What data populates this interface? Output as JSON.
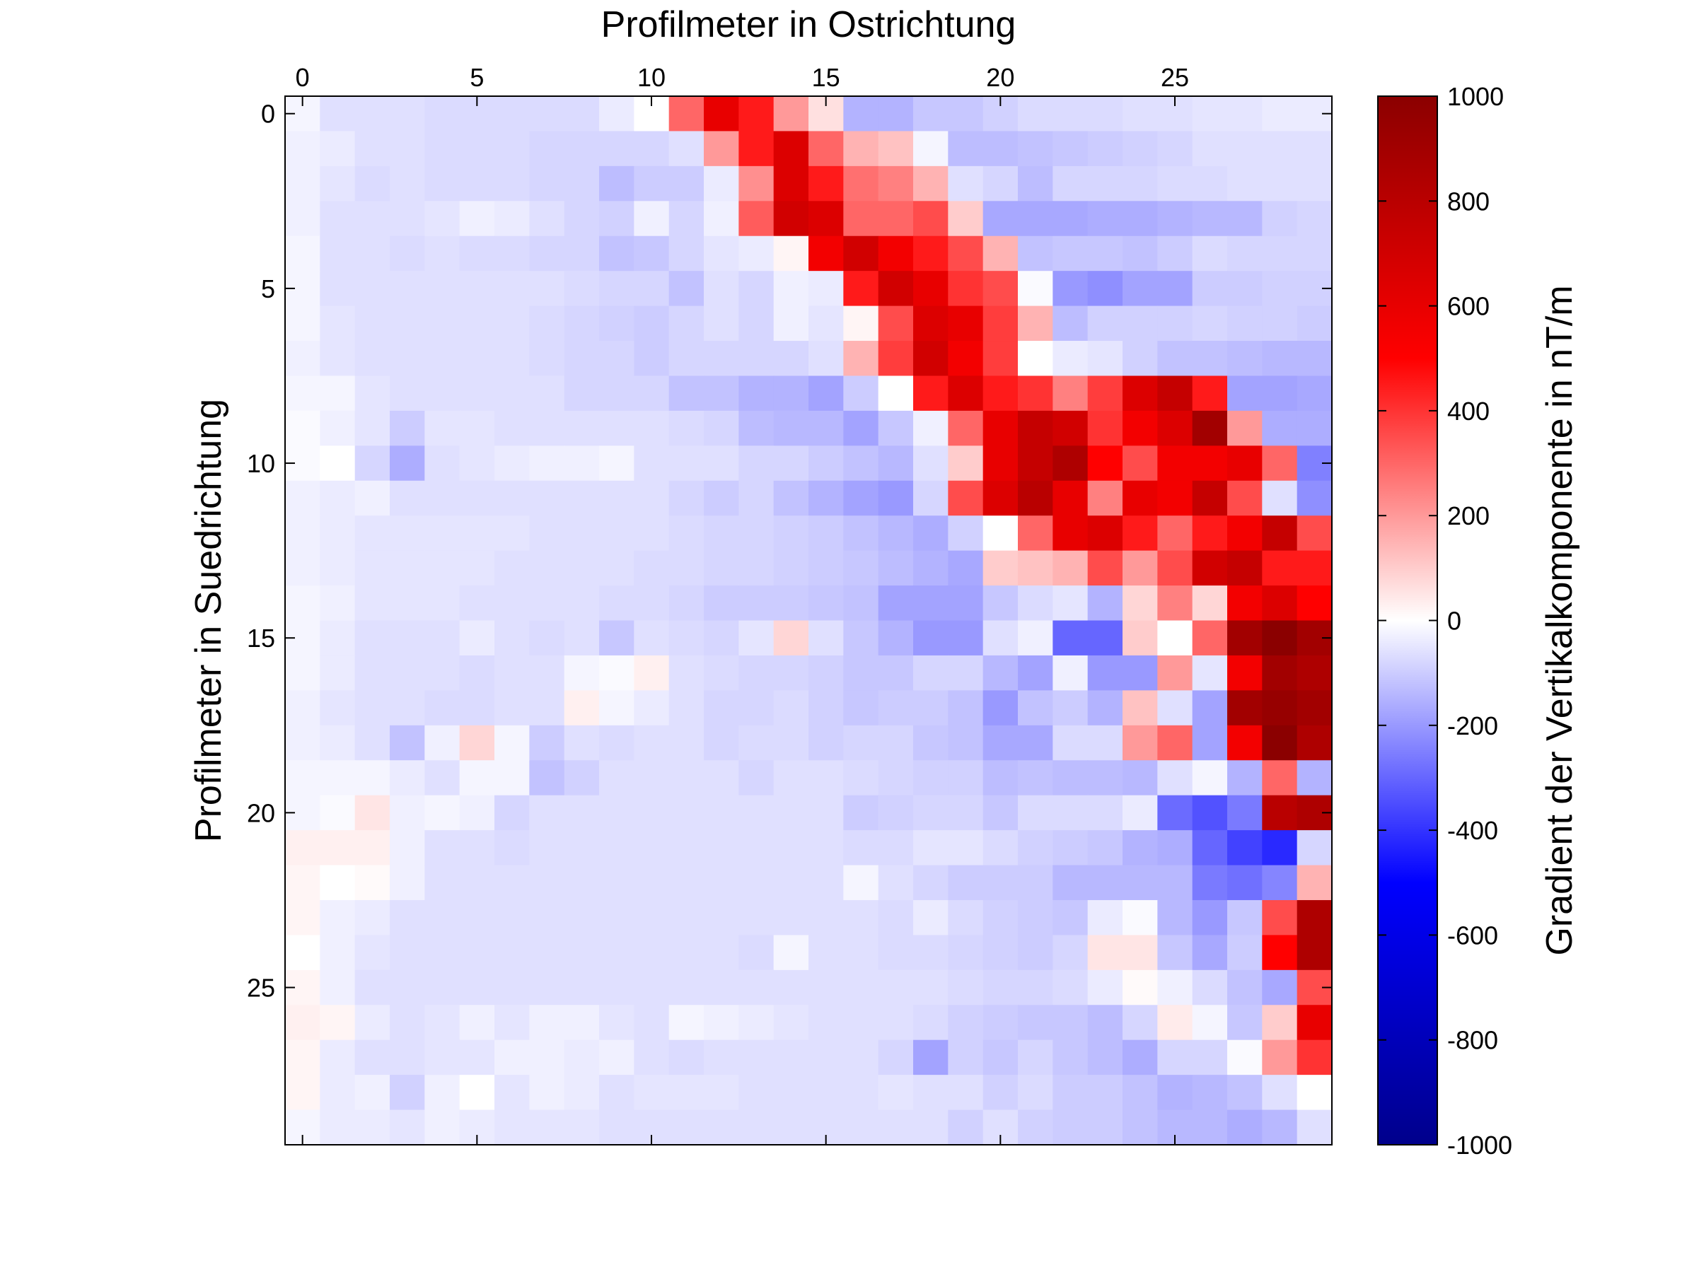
{
  "chart_data": {
    "type": "heatmap",
    "xlabel": "Profilmeter in Ostrichtung",
    "ylabel": "Profilmeter in Suedrichtung",
    "colorbar_label": "Gradient der Vertikalkomponente in nT/m",
    "xlim": [
      -0.5,
      29.5
    ],
    "ylim": [
      -0.5,
      29.5
    ],
    "x_axis_position": "top",
    "y_axis_direction": "down",
    "x_ticks": [
      0,
      5,
      10,
      15,
      20,
      25
    ],
    "y_ticks": [
      0,
      5,
      10,
      15,
      20,
      25
    ],
    "colorbar_ticks": [
      1000,
      800,
      600,
      400,
      200,
      0,
      -200,
      -400,
      -600,
      -800,
      -1000
    ],
    "clim": [
      -1000,
      1000
    ],
    "colormap": [
      "#00008b",
      "#0000ff",
      "#ffffff",
      "#ff0000",
      "#8b0000"
    ],
    "grid": false,
    "z": [
      [
        -20,
        -60,
        -60,
        -60,
        -70,
        -70,
        -70,
        -70,
        -70,
        -40,
        0,
        300,
        600,
        450,
        200,
        60,
        -150,
        -150,
        -110,
        -110,
        -90,
        -70,
        -70,
        -70,
        -60,
        -60,
        -50,
        -50,
        -40,
        -40
      ],
      [
        -30,
        -40,
        -60,
        -60,
        -70,
        -70,
        -70,
        -80,
        -80,
        -80,
        -80,
        -60,
        200,
        450,
        650,
        300,
        150,
        120,
        -20,
        -130,
        -130,
        -120,
        -110,
        -100,
        -90,
        -80,
        -60,
        -60,
        -60,
        -60
      ],
      [
        -30,
        -50,
        -70,
        -60,
        -70,
        -70,
        -70,
        -80,
        -80,
        -130,
        -100,
        -100,
        -40,
        220,
        650,
        450,
        280,
        250,
        150,
        -60,
        -80,
        -130,
        -80,
        -80,
        -80,
        -70,
        -70,
        -60,
        -60,
        -60
      ],
      [
        -30,
        -60,
        -60,
        -60,
        -50,
        -30,
        -40,
        -60,
        -80,
        -90,
        -30,
        -80,
        -30,
        320,
        700,
        650,
        300,
        300,
        350,
        100,
        -170,
        -170,
        -170,
        -160,
        -160,
        -150,
        -140,
        -140,
        -90,
        -80
      ],
      [
        -20,
        -60,
        -60,
        -70,
        -60,
        -70,
        -70,
        -80,
        -80,
        -120,
        -110,
        -80,
        -50,
        -40,
        20,
        550,
        700,
        550,
        450,
        350,
        150,
        -120,
        -110,
        -110,
        -120,
        -100,
        -70,
        -80,
        -80,
        -80
      ],
      [
        -20,
        -60,
        -60,
        -60,
        -60,
        -60,
        -60,
        -60,
        -70,
        -80,
        -80,
        -120,
        -60,
        -80,
        -30,
        -40,
        450,
        700,
        600,
        400,
        350,
        -10,
        -200,
        -220,
        -180,
        -180,
        -100,
        -100,
        -90,
        -90
      ],
      [
        -20,
        -50,
        -60,
        -60,
        -60,
        -60,
        -60,
        -70,
        -80,
        -90,
        -100,
        -80,
        -60,
        -80,
        -30,
        -50,
        20,
        350,
        650,
        600,
        380,
        150,
        -130,
        -90,
        -90,
        -90,
        -80,
        -90,
        -90,
        -100
      ],
      [
        -30,
        -50,
        -60,
        -60,
        -60,
        -60,
        -60,
        -70,
        -80,
        -80,
        -100,
        -80,
        -80,
        -80,
        -80,
        -60,
        150,
        380,
        700,
        550,
        380,
        0,
        -40,
        -50,
        -90,
        -120,
        -120,
        -130,
        -140,
        -140
      ],
      [
        -20,
        -20,
        -50,
        -60,
        -60,
        -60,
        -60,
        -60,
        -80,
        -80,
        -80,
        -120,
        -120,
        -150,
        -150,
        -180,
        -100,
        0,
        450,
        650,
        450,
        400,
        250,
        380,
        650,
        750,
        450,
        -180,
        -180,
        -170
      ],
      [
        -10,
        -30,
        -50,
        -100,
        -50,
        -50,
        -60,
        -60,
        -60,
        -60,
        -60,
        -70,
        -80,
        -130,
        -140,
        -140,
        -180,
        -110,
        -30,
        300,
        600,
        750,
        700,
        400,
        550,
        650,
        900,
        200,
        -160,
        -160
      ],
      [
        -10,
        0,
        -80,
        -160,
        -60,
        -50,
        -40,
        -30,
        -30,
        -20,
        -60,
        -60,
        -60,
        -80,
        -80,
        -100,
        -120,
        -140,
        -60,
        100,
        600,
        750,
        850,
        500,
        350,
        550,
        550,
        600,
        300,
        -250
      ],
      [
        -30,
        -40,
        -30,
        -60,
        -60,
        -60,
        -60,
        -60,
        -60,
        -60,
        -60,
        -80,
        -100,
        -80,
        -120,
        -150,
        -180,
        -200,
        -80,
        350,
        650,
        800,
        600,
        250,
        600,
        550,
        750,
        350,
        -60,
        -220
      ],
      [
        -30,
        -40,
        -50,
        -50,
        -50,
        -50,
        -50,
        -60,
        -60,
        -60,
        -60,
        -70,
        -80,
        -80,
        -90,
        -100,
        -120,
        -140,
        -160,
        -90,
        0,
        300,
        600,
        650,
        450,
        300,
        450,
        550,
        750,
        350
      ],
      [
        -30,
        -40,
        -50,
        -50,
        -50,
        -50,
        -60,
        -60,
        -60,
        -60,
        -70,
        -70,
        -80,
        -80,
        -90,
        -100,
        -110,
        -130,
        -150,
        -170,
        100,
        120,
        150,
        350,
        200,
        350,
        700,
        750,
        450,
        450
      ],
      [
        -20,
        -30,
        -50,
        -50,
        -50,
        -60,
        -60,
        -60,
        -60,
        -70,
        -70,
        -80,
        -100,
        -100,
        -100,
        -110,
        -120,
        -180,
        -180,
        -180,
        -110,
        -70,
        -50,
        -150,
        80,
        250,
        80,
        550,
        650,
        500
      ],
      [
        -20,
        -40,
        -60,
        -60,
        -60,
        -40,
        -60,
        -70,
        -60,
        -110,
        -60,
        -70,
        -80,
        -50,
        80,
        -60,
        -110,
        -150,
        -200,
        -200,
        -60,
        -30,
        -300,
        -300,
        100,
        0,
        300,
        900,
        1000,
        900
      ],
      [
        -20,
        -40,
        -60,
        -60,
        -60,
        -70,
        -60,
        -60,
        -20,
        -10,
        30,
        -60,
        -70,
        -80,
        -80,
        -90,
        -110,
        -110,
        -80,
        -80,
        -140,
        -180,
        -30,
        -200,
        -200,
        200,
        -50,
        550,
        900,
        850
      ],
      [
        -30,
        -50,
        -60,
        -60,
        -70,
        -70,
        -60,
        -60,
        30,
        -20,
        -40,
        -60,
        -80,
        -80,
        -70,
        -90,
        -110,
        -100,
        -100,
        -120,
        -200,
        -120,
        -100,
        -150,
        120,
        -60,
        -180,
        900,
        950,
        900
      ],
      [
        -30,
        -40,
        -60,
        -120,
        -30,
        80,
        -20,
        -100,
        -60,
        -70,
        -60,
        -60,
        -80,
        -70,
        -70,
        -90,
        -80,
        -80,
        -110,
        -120,
        -170,
        -170,
        -70,
        -70,
        200,
        300,
        -180,
        550,
        1000,
        850
      ],
      [
        -20,
        -20,
        -20,
        -40,
        -60,
        -20,
        -20,
        -120,
        -90,
        -60,
        -60,
        -60,
        -60,
        -80,
        -60,
        -60,
        -70,
        -80,
        -90,
        -90,
        -130,
        -120,
        -130,
        -130,
        -140,
        -60,
        -20,
        -150,
        300,
        -150
      ],
      [
        -20,
        -10,
        50,
        -30,
        -20,
        -30,
        -80,
        -60,
        -60,
        -60,
        -60,
        -60,
        -60,
        -60,
        -60,
        -60,
        -100,
        -90,
        -80,
        -80,
        -110,
        -70,
        -70,
        -70,
        -40,
        -290,
        -340,
        -260,
        800,
        850
      ],
      [
        30,
        30,
        30,
        -30,
        -60,
        -60,
        -70,
        -60,
        -60,
        -60,
        -60,
        -60,
        -60,
        -60,
        -60,
        -60,
        -70,
        -70,
        -50,
        -50,
        -70,
        -90,
        -100,
        -110,
        -150,
        -160,
        -300,
        -370,
        -420,
        -80
      ],
      [
        20,
        0,
        10,
        -30,
        -60,
        -60,
        -60,
        -60,
        -60,
        -60,
        -60,
        -60,
        -60,
        -60,
        -60,
        -60,
        -20,
        -60,
        -80,
        -100,
        -100,
        -100,
        -140,
        -140,
        -140,
        -140,
        -260,
        -280,
        -240,
        150
      ],
      [
        20,
        -30,
        -40,
        -60,
        -60,
        -60,
        -60,
        -60,
        -60,
        -60,
        -60,
        -60,
        -60,
        -60,
        -60,
        -60,
        -60,
        -70,
        -40,
        -70,
        -90,
        -100,
        -110,
        -40,
        -10,
        -140,
        -200,
        -110,
        350,
        850
      ],
      [
        0,
        -30,
        -50,
        -60,
        -60,
        -60,
        -60,
        -60,
        -60,
        -60,
        -60,
        -60,
        -60,
        -70,
        -20,
        -60,
        -60,
        -70,
        -70,
        -80,
        -90,
        -100,
        -80,
        50,
        50,
        -110,
        -170,
        -100,
        500,
        850
      ],
      [
        20,
        -30,
        -60,
        -60,
        -60,
        -60,
        -60,
        -60,
        -60,
        -60,
        -60,
        -60,
        -60,
        -60,
        -60,
        -60,
        -60,
        -60,
        -60,
        -70,
        -80,
        -80,
        -70,
        -40,
        10,
        -30,
        -70,
        -120,
        -170,
        350
      ],
      [
        30,
        20,
        -40,
        -60,
        -50,
        -30,
        -50,
        -30,
        -30,
        -50,
        -60,
        -20,
        -30,
        -40,
        -50,
        -60,
        -60,
        -60,
        -70,
        -90,
        -100,
        -110,
        -110,
        -130,
        -80,
        40,
        -20,
        -110,
        100,
        600
      ],
      [
        20,
        -40,
        -60,
        -60,
        -50,
        -50,
        -30,
        -30,
        -40,
        -30,
        -60,
        -70,
        -60,
        -60,
        -60,
        -60,
        -60,
        -80,
        -180,
        -90,
        -110,
        -80,
        -110,
        -130,
        -160,
        -80,
        -80,
        -10,
        200,
        400
      ],
      [
        20,
        -40,
        -30,
        -90,
        -30,
        0,
        -50,
        -30,
        -40,
        -60,
        -50,
        -50,
        -50,
        -60,
        -60,
        -60,
        -60,
        -50,
        -60,
        -60,
        -90,
        -70,
        -100,
        -100,
        -120,
        -150,
        -140,
        -120,
        -60,
        0
      ],
      [
        -20,
        -40,
        -40,
        -50,
        -30,
        -40,
        -50,
        -50,
        -50,
        -60,
        -60,
        -60,
        -60,
        -60,
        -60,
        -60,
        -60,
        -60,
        -60,
        -90,
        -60,
        -90,
        -100,
        -100,
        -120,
        -140,
        -140,
        -160,
        -140,
        -60
      ]
    ]
  }
}
